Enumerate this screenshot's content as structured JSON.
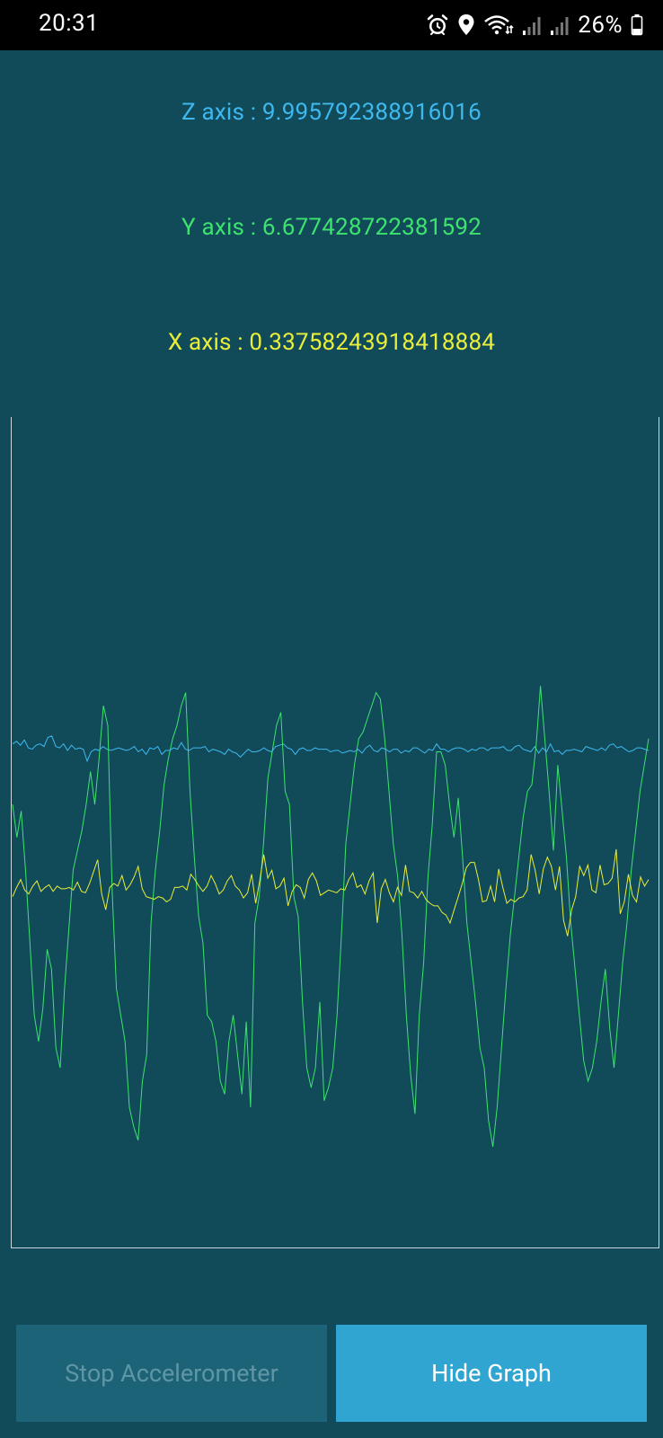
{
  "status_bar": {
    "time": "20:31",
    "battery": "26%",
    "icons": [
      "alarm-icon",
      "location-icon",
      "wifi-icon",
      "signal-icon",
      "signal-icon",
      "battery-icon"
    ]
  },
  "readings": {
    "z": "Z axis : 9.995792388916016",
    "y": "Y axis : 6.677428722381592",
    "x": "X axis : 0.33758243918418884"
  },
  "colors": {
    "background": "#114b5a",
    "z": "#3fb8ee",
    "y": "#3ee26e",
    "x": "#e9ee3a",
    "button_disabled": "#1d6378",
    "button_active": "#31a5d2"
  },
  "buttons": {
    "stop": "Stop Accelerometer",
    "hide_graph": "Hide Graph"
  },
  "chart_data": {
    "type": "line",
    "ylim": [
      -20,
      20
    ],
    "grid": false,
    "series": [
      {
        "name": "Z axis",
        "color": "#3fb8ee",
        "values": [
          10.6,
          10.8,
          10.5,
          10.9,
          10.3,
          10.2,
          10.5,
          10.6,
          10.4,
          11.1,
          11.2,
          10.4,
          10.3,
          10.6,
          10.1,
          10.5,
          10.2,
          10.3,
          10.2,
          9.3,
          10.0,
          10.2,
          10.1,
          10.4,
          10.2,
          10.1,
          10.2,
          10.3,
          10.2,
          10.1,
          10.2,
          10.4,
          10.0,
          10.2,
          9.8,
          10.3,
          10.2,
          10.4,
          9.8,
          10.1,
          10.1,
          10.3,
          10.2,
          10.7,
          10.2,
          10.1,
          10.3,
          10.3,
          10.3,
          10.4,
          10.0,
          10.2,
          10.1,
          10.0,
          9.8,
          10.2,
          10.0,
          9.9,
          9.6,
          9.9,
          10.2,
          10.0,
          10.0,
          10.1,
          10.3,
          10.1,
          10.0,
          10.4,
          10.5,
          10.6,
          10.3,
          10.2,
          9.8,
          10.2,
          10.3,
          10.1,
          10.1,
          10.3,
          10.2,
          10.2,
          10.2,
          10.0,
          10.1,
          10.1,
          9.9,
          10.0,
          10.1,
          10.0,
          10.2,
          9.9,
          10.3,
          10.5,
          10.1,
          10.0,
          10.3,
          10.2,
          10.0,
          10.2,
          10.2,
          9.9,
          10.1,
          10.0,
          10.3,
          10.3,
          10.1,
          9.9,
          10.2,
          10.1,
          10.6,
          10.2,
          10.2,
          10.0,
          10.2,
          10.3,
          10.3,
          10.2,
          10.0,
          10.2,
          10.1,
          10.3,
          10.3,
          10.1,
          10.3,
          10.3,
          10.3,
          10.4,
          10.1,
          10.1,
          10.4,
          10.5,
          10.2,
          10.1,
          10.0,
          10.4,
          9.9,
          10.3,
          10.0,
          10.6,
          10.0,
          10.1,
          9.8,
          10.1,
          10.1,
          10.2,
          10.1,
          10.0,
          10.4,
          10.3,
          10.2,
          10.1,
          10.3,
          10.1,
          10.5,
          10.6,
          10.3,
          10.4,
          10.2,
          10.0,
          10.1,
          10.3,
          10.3,
          10.2,
          10.1
        ]
      },
      {
        "name": "Y axis",
        "color": "#3ee26e",
        "values": [
          6.0,
          3.5,
          5.5,
          1.0,
          -4.5,
          -10.0,
          -12.0,
          -9.5,
          -5.0,
          -6.5,
          -12.5,
          -14.0,
          -8.0,
          -3.5,
          1.0,
          2.5,
          4.0,
          6.0,
          8.5,
          6.0,
          9.5,
          13.5,
          12.0,
          -0.5,
          -8.0,
          -10.0,
          -12.0,
          -17.0,
          -18.5,
          -19.5,
          -15.0,
          -13.0,
          -3.0,
          1.0,
          4.0,
          7.5,
          9.5,
          11.0,
          12.0,
          13.5,
          14.5,
          7.0,
          2.0,
          -2.5,
          -4.5,
          -10.0,
          -10.5,
          -12.0,
          -15.0,
          -16.0,
          -12.0,
          -10.0,
          -13.0,
          -16.0,
          -10.5,
          -17.0,
          -3.0,
          -1.0,
          3.0,
          8.0,
          10.0,
          12.0,
          13.0,
          7.0,
          6.0,
          -1.0,
          -2.5,
          -9.0,
          -14.0,
          -15.5,
          -14.0,
          -9.0,
          -16.5,
          -15.5,
          -14.0,
          -10.0,
          -4.0,
          3.0,
          6.0,
          9.0,
          11.0,
          11.5,
          12.5,
          13.5,
          14.5,
          14.0,
          11.0,
          7.0,
          3.0,
          0.5,
          -4.0,
          -10.0,
          -14.5,
          -17.5,
          -10.0,
          -6.0,
          0.5,
          4.5,
          10.0,
          10.0,
          9.0,
          6.0,
          3.5,
          6.5,
          2.0,
          -3.0,
          -6.0,
          -9.0,
          -12.5,
          -14.0,
          -18.0,
          -20.0,
          -17.0,
          -12.5,
          -8.0,
          -4.0,
          -1.0,
          2.0,
          5.0,
          7.0,
          7.5,
          10.5,
          15.0,
          11.0,
          7.0,
          2.5,
          9.0,
          5.5,
          2.0,
          -3.0,
          -6.5,
          -10.0,
          -13.5,
          -15.0,
          -14.0,
          -12.0,
          -9.0,
          -6.5,
          -11.0,
          -14.0,
          -10.0,
          -6.0,
          -3.0,
          1.0,
          4.0,
          7.0,
          9.0,
          11.0
        ]
      },
      {
        "name": "X axis",
        "color": "#e9ee3a",
        "values": [
          -1.0,
          -0.3,
          0.3,
          -0.5,
          -0.8,
          -0.2,
          0.2,
          -0.6,
          -0.3,
          -0.1,
          -0.6,
          -0.2,
          -0.4,
          -0.4,
          -0.3,
          -0.5,
          0.1,
          -0.6,
          -0.7,
          0.0,
          0.9,
          1.8,
          -0.8,
          -2.0,
          -0.3,
          0.0,
          -0.2,
          0.6,
          -0.5,
          -0.1,
          0.5,
          1.3,
          -0.4,
          -1.0,
          -1.1,
          -1.2,
          -1.0,
          -1.1,
          -1.4,
          -1.2,
          -0.3,
          -0.3,
          -0.2,
          -0.5,
          0.7,
          0.3,
          -0.2,
          -0.6,
          -0.2,
          0.6,
          0.0,
          -0.8,
          -0.5,
          0.2,
          0.6,
          -0.2,
          -0.5,
          -1.1,
          -0.7,
          0.7,
          -1.5,
          0.2,
          2.2,
          0.4,
          1.0,
          -0.4,
          -0.2,
          0.4,
          -1.7,
          -0.6,
          -0.1,
          -0.3,
          -1.1,
          0.3,
          0.8,
          0.2,
          -0.9,
          -0.7,
          -0.5,
          -0.6,
          -0.7,
          -0.4,
          -0.5,
          0.3,
          0.8,
          -0.3,
          -0.1,
          -0.8,
          0.2,
          0.8,
          -3.0,
          -0.4,
          0.3,
          -0.7,
          -1.4,
          -0.3,
          -0.9,
          1.4,
          -0.6,
          -0.7,
          -1.1,
          -0.6,
          -1.2,
          -1.5,
          -1.7,
          -1.7,
          -2.2,
          -2.4,
          -3.0,
          -2.0,
          -1.0,
          0.0,
          1.2,
          1.6,
          1.6,
          0.3,
          -1.4,
          -1.3,
          -0.2,
          -1.4,
          1.1,
          -0.3,
          -1.5,
          -1.2,
          -1.4,
          -1.1,
          -1.0,
          -0.5,
          2.2,
          1.0,
          -0.8,
          1.1,
          2.0,
          1.3,
          -0.5,
          1.3,
          -2.8,
          -4.0,
          -2.0,
          -1.0,
          1.3,
          0.6,
          1.4,
          -0.5,
          -0.7,
          1.4,
          -0.1,
          0.0,
          0.4,
          2.6,
          -2.3,
          -1.4,
          0.7,
          -0.9,
          -1.4,
          0.5,
          -0.2,
          0.3
        ]
      }
    ]
  }
}
